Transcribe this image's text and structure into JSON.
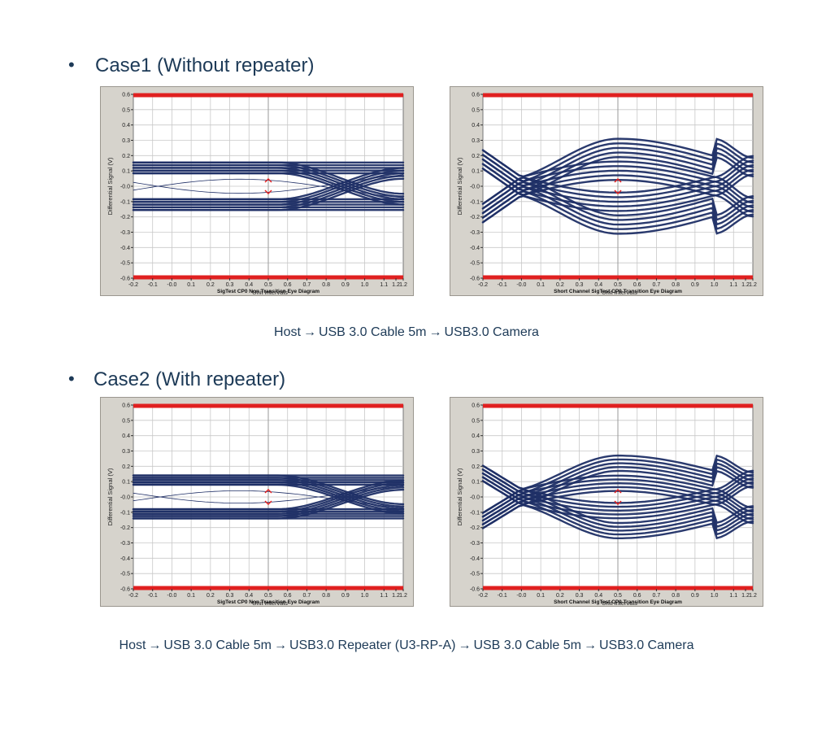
{
  "case1": {
    "bullet": "•",
    "title": "Case1 (Without repeater)"
  },
  "case2": {
    "bullet": "•",
    "title": "Case2 (With repeater)"
  },
  "chain1": [
    "Host",
    "USB 3.0 Cable 5m",
    "USB3.0 Camera"
  ],
  "chain2": [
    "Host",
    "USB 3.0 Cable 5m",
    "USB3.0 Repeater (U3-RP-A)",
    "USB 3.0 Cable 5m",
    "USB3.0 Camera"
  ],
  "arrow": "→",
  "colors": {
    "trace": "#1f2f66",
    "limit": "#e02020",
    "marker": "#e02020",
    "grid": "#c8c8c8"
  },
  "chart_data": [
    {
      "id": "c1-left",
      "type": "line",
      "title": "SigTest CP0 Non Transition Eye Diagram",
      "xlabel": "Unit Intervals",
      "ylabel": "Differential Signal (V)",
      "xlim": [
        -0.2,
        1.2
      ],
      "ylim": [
        -0.6,
        0.6
      ],
      "xticks": [
        "-0.2",
        "-0.1",
        "-0.0",
        "0.1",
        "0.2",
        "0.3",
        "0.4",
        "0.5",
        "0.6",
        "0.7",
        "0.8",
        "0.9",
        "1.0",
        "1.1",
        "1.2",
        "1.2"
      ],
      "yticks": [
        "0.6",
        "0.5",
        "0.4",
        "0.3",
        "0.2",
        "0.1",
        "-0.0",
        "-0.1",
        "-0.2",
        "-0.3",
        "-0.4",
        "-0.5",
        "-0.6"
      ],
      "limits": [
        0.6,
        -0.6
      ],
      "eye": "non-transition",
      "level": 0.12,
      "cross_x": 1.05,
      "thickness": 0.035,
      "marker_x": 0.5
    },
    {
      "id": "c1-right",
      "type": "line",
      "title": "Short Channel SigTest CP0 Transition Eye Diagram",
      "xlabel": "Unit Intervals",
      "ylabel": "Differential Signal (V)",
      "xlim": [
        -0.2,
        1.2
      ],
      "ylim": [
        -0.6,
        0.6
      ],
      "xticks": [
        "-0.2",
        "-0.1",
        "-0.0",
        "0.1",
        "0.2",
        "0.3",
        "0.4",
        "0.5",
        "0.6",
        "0.7",
        "0.8",
        "0.9",
        "1.0",
        "1.1",
        "1.2",
        "1.2"
      ],
      "yticks": [
        "0.6",
        "0.5",
        "0.4",
        "0.3",
        "0.2",
        "0.1",
        "-0.0",
        "-0.1",
        "-0.2",
        "-0.3",
        "-0.4",
        "-0.5",
        "-0.6"
      ],
      "limits": [
        0.6,
        -0.6
      ],
      "eye": "transition",
      "level": 0.25,
      "cross_x": 0.0,
      "cross2_x": 1.0,
      "thickness": 0.06,
      "marker_x": 0.5
    },
    {
      "id": "c2-left",
      "type": "line",
      "title": "SigTest CP0 Non Transition Eye Diagram",
      "xlabel": "Unit Intervals",
      "ylabel": "Differential Signal (V)",
      "xlim": [
        -0.2,
        1.2
      ],
      "ylim": [
        -0.6,
        0.6
      ],
      "xticks": [
        "-0.2",
        "-0.1",
        "-0.0",
        "0.1",
        "0.2",
        "0.3",
        "0.4",
        "0.5",
        "0.6",
        "0.7",
        "0.8",
        "0.9",
        "1.0",
        "1.1",
        "1.2",
        "1.2"
      ],
      "yticks": [
        "0.6",
        "0.5",
        "0.4",
        "0.3",
        "0.2",
        "0.1",
        "-0.0",
        "-0.1",
        "-0.2",
        "-0.3",
        "-0.4",
        "-0.5",
        "-0.6"
      ],
      "limits": [
        0.6,
        -0.6
      ],
      "eye": "non-transition",
      "level": 0.11,
      "cross_x": 1.05,
      "thickness": 0.03,
      "marker_x": 0.5
    },
    {
      "id": "c2-right",
      "type": "line",
      "title": "Short Channel SigTest CP0 Transition Eye Diagram",
      "xlabel": "Unit Intervals",
      "ylabel": "Differential Signal (V)",
      "xlim": [
        -0.2,
        1.2
      ],
      "ylim": [
        -0.6,
        0.6
      ],
      "xticks": [
        "-0.2",
        "-0.1",
        "-0.0",
        "0.1",
        "0.2",
        "0.3",
        "0.4",
        "0.5",
        "0.6",
        "0.7",
        "0.8",
        "0.9",
        "1.0",
        "1.1",
        "1.2",
        "1.2"
      ],
      "yticks": [
        "0.6",
        "0.5",
        "0.4",
        "0.3",
        "0.2",
        "0.1",
        "-0.0",
        "-0.1",
        "-0.2",
        "-0.3",
        "-0.4",
        "-0.5",
        "-0.6"
      ],
      "limits": [
        0.6,
        -0.6
      ],
      "eye": "transition",
      "level": 0.22,
      "cross_x": 0.0,
      "cross2_x": 1.0,
      "thickness": 0.05,
      "marker_x": 0.5
    }
  ]
}
